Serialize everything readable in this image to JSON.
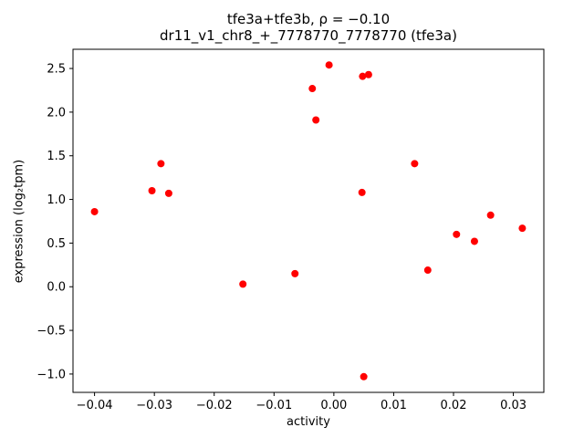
{
  "chart_data": {
    "type": "scatter",
    "title_line1": "tfe3a+tfe3b, ρ = −0.10",
    "title_line2": "dr11_v1_chr8_+_7778770_7778770 (tfe3a)",
    "xlabel": "activity",
    "ylabel": "expression (log₂tpm)",
    "xlim": [
      -0.0436,
      0.0351
    ],
    "ylim": [
      -1.21,
      2.72
    ],
    "xticks": [
      -0.04,
      -0.03,
      -0.02,
      -0.01,
      0.0,
      0.01,
      0.02,
      0.03
    ],
    "yticks": [
      -1.0,
      -0.5,
      0.0,
      0.5,
      1.0,
      1.5,
      2.0,
      2.5
    ],
    "marker_color": "#ff0000",
    "axis_color": "#000000",
    "legend": "none",
    "grid": false,
    "points": [
      [
        -0.04,
        0.86
      ],
      [
        -0.0304,
        1.1
      ],
      [
        -0.0289,
        1.41
      ],
      [
        -0.0276,
        1.07
      ],
      [
        -0.0152,
        0.03
      ],
      [
        -0.0065,
        0.15
      ],
      [
        -0.0036,
        2.27
      ],
      [
        -0.003,
        1.91
      ],
      [
        -0.0008,
        2.54
      ],
      [
        0.0047,
        1.08
      ],
      [
        0.0048,
        2.41
      ],
      [
        0.0058,
        2.43
      ],
      [
        0.005,
        -1.03
      ],
      [
        0.0135,
        1.41
      ],
      [
        0.0157,
        0.19
      ],
      [
        0.0205,
        0.6
      ],
      [
        0.0235,
        0.52
      ],
      [
        0.0262,
        0.82
      ],
      [
        0.0315,
        0.67
      ]
    ]
  }
}
